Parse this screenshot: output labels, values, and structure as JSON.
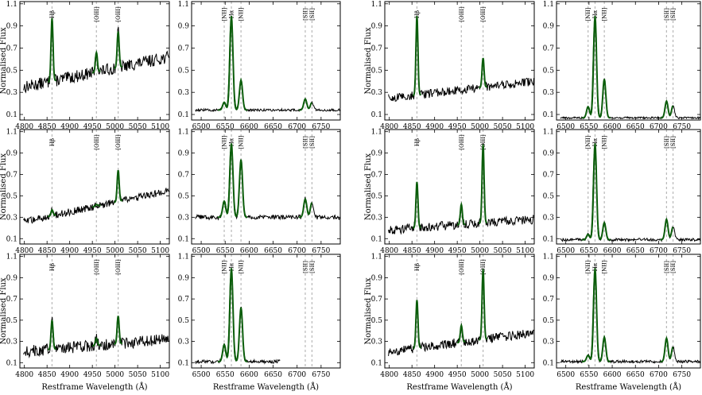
{
  "figure": {
    "y_label": "Normalised Flux",
    "x_label": "Restframe Wavelength (Å)"
  },
  "colors": {
    "spectrum": "#000000",
    "fit": "#0b5d0b",
    "marker": "#b8b8b8",
    "frame": "#000000"
  },
  "chart_data": [
    {
      "id": "p1",
      "type": "line",
      "column": "left-a",
      "row": 1,
      "window": "hbeta",
      "xlim": [
        4790,
        5120
      ],
      "ylim": [
        0.05,
        1.12
      ],
      "xticks": [
        4800,
        4850,
        4900,
        4950,
        5000,
        5050,
        5100
      ],
      "yticks": [
        0.1,
        0.3,
        0.5,
        0.7,
        0.9,
        1.1
      ],
      "continuum": {
        "start": 0.34,
        "end": 0.62
      },
      "noise": 0.05,
      "lines": [
        {
          "name": "Hβ",
          "wl": 4861,
          "peak": 0.97
        },
        {
          "name": "[OIII]",
          "wl": 4959,
          "peak": 0.66
        },
        {
          "name": "[OIII]",
          "wl": 5007,
          "peak": 0.85
        }
      ],
      "ylabel": "Normalised Flux",
      "xlabel": ""
    },
    {
      "id": "p2",
      "type": "line",
      "column": "left-b",
      "row": 1,
      "window": "halpha",
      "xlim": [
        6480,
        6790
      ],
      "ylim": [
        0.05,
        1.12
      ],
      "xticks": [
        6500,
        6550,
        6600,
        6650,
        6700,
        6750
      ],
      "yticks": [
        0.1,
        0.3,
        0.5,
        0.7,
        0.9,
        1.1
      ],
      "continuum": {
        "start": 0.14,
        "end": 0.14
      },
      "noise": 0.01,
      "lines": [
        {
          "name": "[NII]",
          "wl": 6548,
          "peak": 0.21
        },
        {
          "name": "Hα",
          "wl": 6563,
          "peak": 0.99
        },
        {
          "name": "[NII]",
          "wl": 6583,
          "peak": 0.41
        },
        {
          "name": "[SII]",
          "wl": 6717,
          "peak": 0.24
        },
        {
          "name": "[SII]",
          "wl": 6731,
          "peak": 0.21
        }
      ],
      "ylabel": "",
      "xlabel": ""
    },
    {
      "id": "p3",
      "type": "line",
      "column": "right-a",
      "row": 1,
      "window": "hbeta",
      "xlim": [
        4790,
        5120
      ],
      "ylim": [
        0.05,
        1.12
      ],
      "xticks": [
        4800,
        4850,
        4900,
        4950,
        5000,
        5050,
        5100
      ],
      "yticks": [
        0.1,
        0.3,
        0.5,
        0.7,
        0.9,
        1.1
      ],
      "continuum": {
        "start": 0.24,
        "end": 0.4
      },
      "noise": 0.035,
      "lines": [
        {
          "name": "Hβ",
          "wl": 4861,
          "peak": 0.99
        },
        {
          "name": "[OIII]",
          "wl": 4959,
          "peak": 0.3
        },
        {
          "name": "[OIII]",
          "wl": 5007,
          "peak": 0.61
        }
      ],
      "ylabel": "Normalised Flux",
      "xlabel": ""
    },
    {
      "id": "p4",
      "type": "line",
      "column": "right-b",
      "row": 1,
      "window": "halpha",
      "xlim": [
        6480,
        6790
      ],
      "ylim": [
        0.05,
        1.12
      ],
      "xticks": [
        6500,
        6550,
        6600,
        6650,
        6700,
        6750
      ],
      "yticks": [
        0.1,
        0.3,
        0.5,
        0.7,
        0.9,
        1.1
      ],
      "continuum": {
        "start": 0.07,
        "end": 0.07
      },
      "noise": 0.008,
      "lines": [
        {
          "name": "[NII]",
          "wl": 6548,
          "peak": 0.17
        },
        {
          "name": "Hα",
          "wl": 6563,
          "peak": 0.99
        },
        {
          "name": "[NII]",
          "wl": 6583,
          "peak": 0.42
        },
        {
          "name": "[SII]",
          "wl": 6717,
          "peak": 0.22
        },
        {
          "name": "[SII]",
          "wl": 6731,
          "peak": 0.18
        }
      ],
      "ylabel": "",
      "xlabel": ""
    },
    {
      "id": "p5",
      "type": "line",
      "column": "left-a",
      "row": 2,
      "window": "hbeta",
      "xlim": [
        4790,
        5120
      ],
      "ylim": [
        0.05,
        1.12
      ],
      "xticks": [
        4800,
        4850,
        4900,
        4950,
        5000,
        5050,
        5100
      ],
      "yticks": [
        0.1,
        0.3,
        0.5,
        0.7,
        0.9,
        1.1
      ],
      "continuum": {
        "start": 0.25,
        "end": 0.55
      },
      "noise": 0.03,
      "lines": [
        {
          "name": "Hβ",
          "wl": 4861,
          "peak": 0.37
        },
        {
          "name": "[OIII]",
          "wl": 4959,
          "peak": 0.42
        },
        {
          "name": "[OIII]",
          "wl": 5007,
          "peak": 0.74
        }
      ],
      "ylabel": "Normalised Flux",
      "xlabel": ""
    },
    {
      "id": "p6",
      "type": "line",
      "column": "left-b",
      "row": 2,
      "window": "halpha",
      "xlim": [
        6480,
        6790
      ],
      "ylim": [
        0.05,
        1.12
      ],
      "xticks": [
        6500,
        6550,
        6600,
        6650,
        6700,
        6750
      ],
      "yticks": [
        0.1,
        0.3,
        0.5,
        0.7,
        0.9,
        1.1
      ],
      "continuum": {
        "start": 0.3,
        "end": 0.3
      },
      "noise": 0.02,
      "lines": [
        {
          "name": "[NII]",
          "wl": 6548,
          "peak": 0.45
        },
        {
          "name": "Hα",
          "wl": 6563,
          "peak": 0.99
        },
        {
          "name": "[NII]",
          "wl": 6583,
          "peak": 0.84
        },
        {
          "name": "[SII]",
          "wl": 6717,
          "peak": 0.47
        },
        {
          "name": "[SII]",
          "wl": 6731,
          "peak": 0.44
        }
      ],
      "ylabel": "",
      "xlabel": ""
    },
    {
      "id": "p7",
      "type": "line",
      "column": "right-a",
      "row": 2,
      "window": "hbeta",
      "xlim": [
        4790,
        5120
      ],
      "ylim": [
        0.05,
        1.12
      ],
      "xticks": [
        4800,
        4850,
        4900,
        4950,
        5000,
        5050,
        5100
      ],
      "yticks": [
        0.1,
        0.3,
        0.5,
        0.7,
        0.9,
        1.1
      ],
      "continuum": {
        "start": 0.18,
        "end": 0.28
      },
      "noise": 0.04,
      "lines": [
        {
          "name": "Hβ",
          "wl": 4861,
          "peak": 0.63
        },
        {
          "name": "[OIII]",
          "wl": 4959,
          "peak": 0.42
        },
        {
          "name": "[OIII]",
          "wl": 5007,
          "peak": 0.98
        }
      ],
      "ylabel": "Normalised Flux",
      "xlabel": ""
    },
    {
      "id": "p8",
      "type": "line",
      "column": "right-b",
      "row": 2,
      "window": "halpha",
      "xlim": [
        6480,
        6790
      ],
      "ylim": [
        0.05,
        1.12
      ],
      "xticks": [
        6500,
        6550,
        6600,
        6650,
        6700,
        6750
      ],
      "yticks": [
        0.1,
        0.3,
        0.5,
        0.7,
        0.9,
        1.1
      ],
      "continuum": {
        "start": 0.09,
        "end": 0.09
      },
      "noise": 0.012,
      "lines": [
        {
          "name": "[NII]",
          "wl": 6548,
          "peak": 0.14
        },
        {
          "name": "Hα",
          "wl": 6563,
          "peak": 0.99
        },
        {
          "name": "[NII]",
          "wl": 6583,
          "peak": 0.25
        },
        {
          "name": "[SII]",
          "wl": 6717,
          "peak": 0.28
        },
        {
          "name": "[SII]",
          "wl": 6731,
          "peak": 0.21
        }
      ],
      "ylabel": "",
      "xlabel": ""
    },
    {
      "id": "p9",
      "type": "line",
      "column": "left-a",
      "row": 3,
      "window": "hbeta",
      "xlim": [
        4790,
        5120
      ],
      "ylim": [
        0.05,
        1.12
      ],
      "xticks": [
        4800,
        4850,
        4900,
        4950,
        5000,
        5050,
        5100
      ],
      "yticks": [
        0.1,
        0.3,
        0.5,
        0.7,
        0.9,
        1.1
      ],
      "continuum": {
        "start": 0.2,
        "end": 0.32
      },
      "noise": 0.05,
      "lines": [
        {
          "name": "Hβ",
          "wl": 4861,
          "peak": 0.5
        },
        {
          "name": "[OIII]",
          "wl": 4959,
          "peak": 0.33
        },
        {
          "name": "[OIII]",
          "wl": 5007,
          "peak": 0.54
        }
      ],
      "ylabel": "Normalised Flux",
      "xlabel": "Restframe Wavelength (Å)"
    },
    {
      "id": "p10",
      "type": "line",
      "column": "left-b",
      "row": 3,
      "window": "halpha",
      "xlim": [
        6480,
        6790
      ],
      "ylim": [
        0.05,
        1.12
      ],
      "xticks": [
        6500,
        6550,
        6600,
        6650,
        6700,
        6750
      ],
      "yticks": [
        0.1,
        0.3,
        0.5,
        0.7,
        0.9,
        1.1
      ],
      "continuum": {
        "start": 0.11,
        "end": 0.11
      },
      "noise": 0.015,
      "data_end": 6665,
      "lines": [
        {
          "name": "[NII]",
          "wl": 6548,
          "peak": 0.27
        },
        {
          "name": "Hα",
          "wl": 6563,
          "peak": 0.99
        },
        {
          "name": "[NII]",
          "wl": 6583,
          "peak": 0.62
        },
        {
          "name": "[SII]",
          "wl": 6717,
          "peak": 0.11
        },
        {
          "name": "[SII]",
          "wl": 6731,
          "peak": 0.11
        }
      ],
      "ylabel": "",
      "xlabel": "Restframe Wavelength (Å)"
    },
    {
      "id": "p11",
      "type": "line",
      "column": "right-a",
      "row": 3,
      "window": "hbeta",
      "xlim": [
        4790,
        5120
      ],
      "ylim": [
        0.05,
        1.12
      ],
      "xticks": [
        4800,
        4850,
        4900,
        4950,
        5000,
        5050,
        5100
      ],
      "yticks": [
        0.1,
        0.3,
        0.5,
        0.7,
        0.9,
        1.1
      ],
      "continuum": {
        "start": 0.2,
        "end": 0.38
      },
      "noise": 0.04,
      "lines": [
        {
          "name": "Hβ",
          "wl": 4861,
          "peak": 0.69
        },
        {
          "name": "[OIII]",
          "wl": 4959,
          "peak": 0.45
        },
        {
          "name": "[OIII]",
          "wl": 5007,
          "peak": 0.98
        }
      ],
      "ylabel": "Normalised Flux",
      "xlabel": "Restframe Wavelength (Å)"
    },
    {
      "id": "p12",
      "type": "line",
      "column": "right-b",
      "row": 3,
      "window": "halpha",
      "xlim": [
        6480,
        6790
      ],
      "ylim": [
        0.05,
        1.12
      ],
      "xticks": [
        6500,
        6550,
        6600,
        6650,
        6700,
        6750
      ],
      "yticks": [
        0.1,
        0.3,
        0.5,
        0.7,
        0.9,
        1.1
      ],
      "continuum": {
        "start": 0.11,
        "end": 0.11
      },
      "noise": 0.012,
      "lines": [
        {
          "name": "[NII]",
          "wl": 6548,
          "peak": 0.17
        },
        {
          "name": "Hα",
          "wl": 6563,
          "peak": 0.99
        },
        {
          "name": "[NII]",
          "wl": 6583,
          "peak": 0.34
        },
        {
          "name": "[SII]",
          "wl": 6717,
          "peak": 0.33
        },
        {
          "name": "[SII]",
          "wl": 6731,
          "peak": 0.25
        }
      ],
      "ylabel": "",
      "xlabel": "Restframe Wavelength (Å)"
    }
  ]
}
